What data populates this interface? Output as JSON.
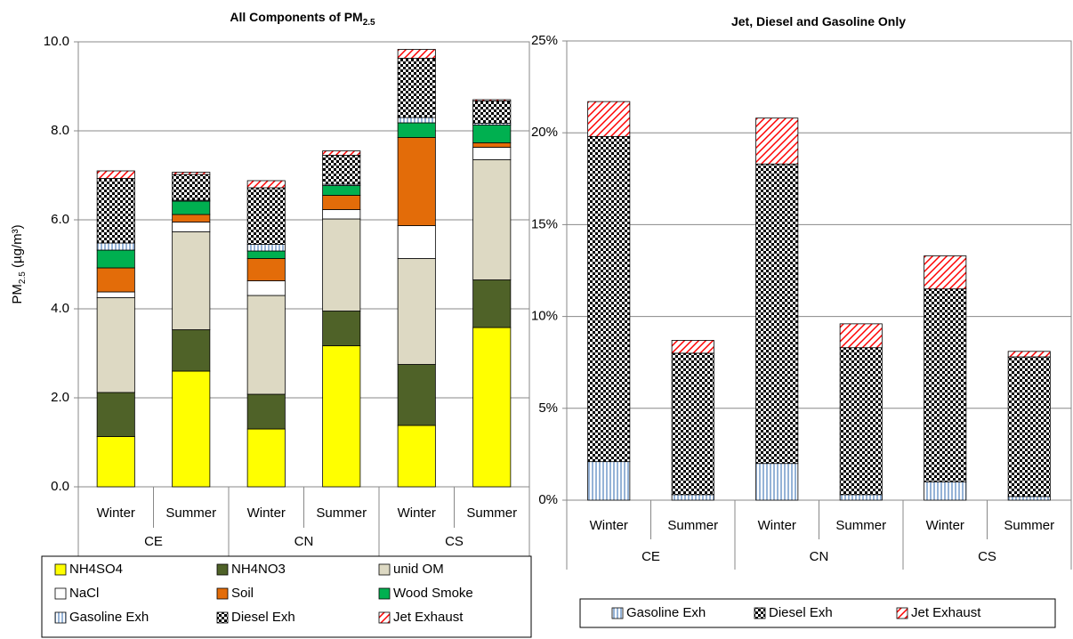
{
  "chart_data": [
    {
      "type": "stacked-bar",
      "title": [
        "All Components of PM",
        "2.5"
      ],
      "ylabel": [
        "PM",
        "2.5",
        " (µg/m³)"
      ],
      "categories": [
        "Winter",
        "Summer",
        "Winter",
        "Summer",
        "Winter",
        "Summer"
      ],
      "groups": [
        "CE",
        "CN",
        "CS"
      ],
      "ylim": [
        0,
        10
      ],
      "yticks": [
        {
          "value": 0,
          "label": "0.0"
        },
        {
          "value": 2,
          "label": "2.0"
        },
        {
          "value": 4,
          "label": "4.0"
        },
        {
          "value": 6,
          "label": "6.0"
        },
        {
          "value": 8,
          "label": "8.0"
        },
        {
          "value": 10,
          "label": "10.0"
        }
      ],
      "grid": true,
      "legend": "bottom",
      "series": [
        {
          "name": "NH4SO4",
          "color": "#ffff00",
          "values": [
            1.13,
            2.6,
            1.3,
            3.17,
            1.38,
            3.58
          ]
        },
        {
          "name": "NH4NO3",
          "color": "#4f6228",
          "values": [
            0.99,
            0.93,
            0.78,
            0.78,
            1.37,
            1.07
          ]
        },
        {
          "name": "unid OM",
          "color": "#ddd9c3",
          "values": [
            2.13,
            2.2,
            2.22,
            2.07,
            2.38,
            2.7
          ]
        },
        {
          "name": "NaCl",
          "color": "#ffffff",
          "values": [
            0.13,
            0.22,
            0.33,
            0.21,
            0.74,
            0.28
          ]
        },
        {
          "name": "Soil",
          "color": "#e36c09",
          "values": [
            0.54,
            0.17,
            0.5,
            0.32,
            1.98,
            0.1
          ]
        },
        {
          "name": "Wood Smoke",
          "color": "#00b050",
          "values": [
            0.4,
            0.3,
            0.17,
            0.22,
            0.33,
            0.4
          ]
        },
        {
          "name": "Gasoline Exh",
          "color": "#95b3d7",
          "pattern": "vertical-stripes",
          "values": [
            0.16,
            0.02,
            0.15,
            0.03,
            0.12,
            0.04
          ]
        },
        {
          "name": "Diesel Exh",
          "color": "#000000",
          "pattern": "checker",
          "values": [
            1.45,
            0.58,
            1.27,
            0.65,
            1.33,
            0.5
          ]
        },
        {
          "name": "Jet Exhaust",
          "color": "#ff0000",
          "pattern": "diagonal-stripes",
          "values": [
            0.17,
            0.05,
            0.16,
            0.1,
            0.2,
            0.03
          ]
        }
      ]
    },
    {
      "type": "stacked-bar",
      "title": [
        "Jet, Diesel and Gasoline Only"
      ],
      "categories": [
        "Winter",
        "Summer",
        "Winter",
        "Summer",
        "Winter",
        "Summer"
      ],
      "groups": [
        "CE",
        "CN",
        "CS"
      ],
      "ylim": [
        0,
        25
      ],
      "yticks": [
        {
          "value": 0,
          "label": "0%"
        },
        {
          "value": 5,
          "label": "5%"
        },
        {
          "value": 10,
          "label": "10%"
        },
        {
          "value": 15,
          "label": "15%"
        },
        {
          "value": 20,
          "label": "20%"
        },
        {
          "value": 25,
          "label": "25%"
        }
      ],
      "grid": true,
      "legend": "bottom",
      "series": [
        {
          "name": "Gasoline Exh",
          "color": "#95b3d7",
          "pattern": "vertical-stripes",
          "values": [
            2.1,
            0.3,
            2.0,
            0.3,
            1.0,
            0.2
          ]
        },
        {
          "name": "Diesel Exh",
          "color": "#000000",
          "pattern": "checker",
          "values": [
            17.7,
            7.7,
            16.3,
            8.0,
            10.5,
            7.6
          ]
        },
        {
          "name": "Jet Exhaust",
          "color": "#ff0000",
          "pattern": "diagonal-stripes",
          "values": [
            1.9,
            0.7,
            2.5,
            1.3,
            1.8,
            0.3
          ]
        }
      ]
    }
  ]
}
